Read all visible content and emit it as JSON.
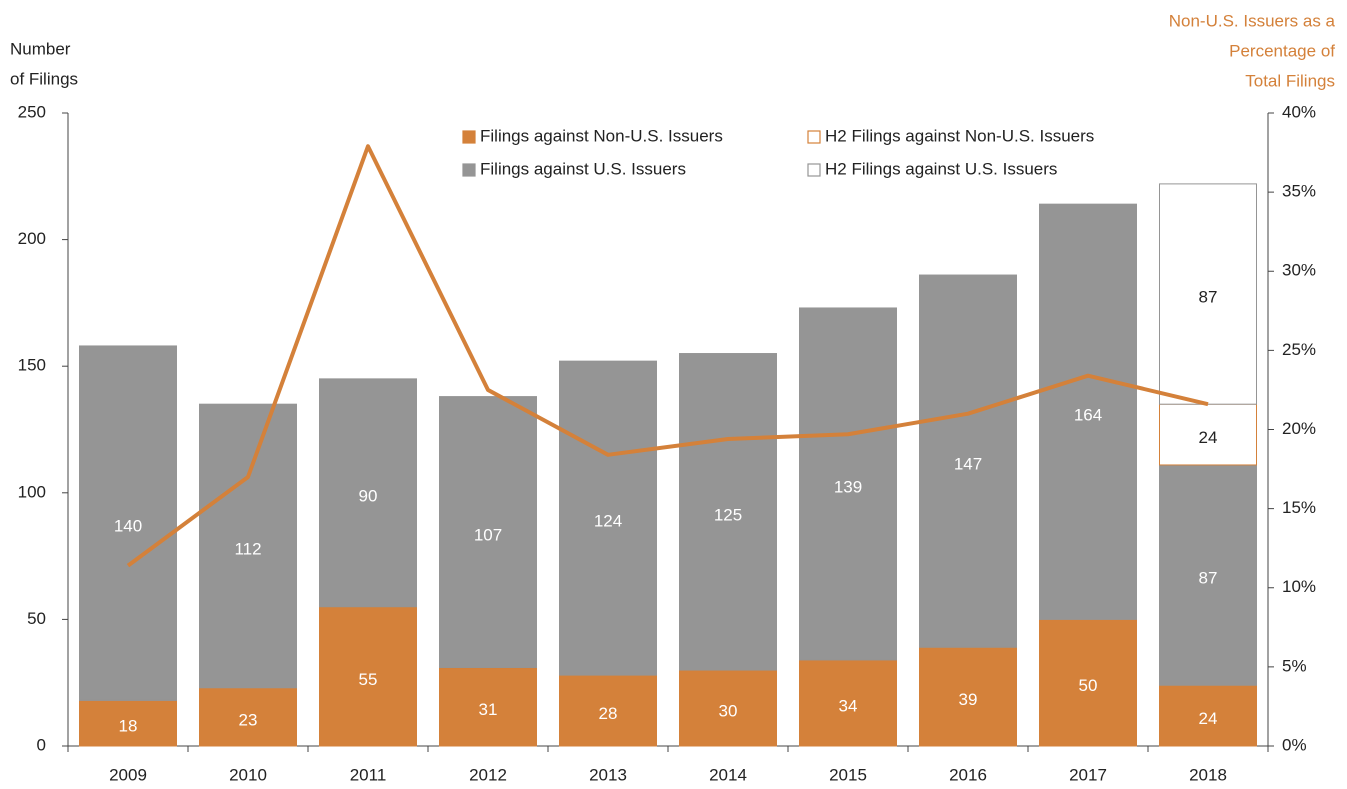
{
  "chart_data": {
    "type": "bar",
    "ylabel": [
      "Number",
      "of Filings"
    ],
    "y2label": [
      "Non-U.S. Issuers as a",
      "Percentage of",
      "Total Filings"
    ],
    "categories": [
      "2009",
      "2010",
      "2011",
      "2012",
      "2013",
      "2014",
      "2015",
      "2016",
      "2017",
      "2018"
    ],
    "series": [
      {
        "name": "Filings against Non-U.S. Issuers",
        "color": "#d4813a",
        "edgecolor": "#d4813a",
        "label_color": "#ffffff",
        "values": [
          18,
          23,
          55,
          31,
          28,
          30,
          34,
          39,
          50,
          24
        ]
      },
      {
        "name": "Filings against U.S. Issuers",
        "color": "#959595",
        "edgecolor": "#959595",
        "label_color": "#ffffff",
        "values": [
          140,
          112,
          90,
          107,
          124,
          125,
          139,
          147,
          164,
          87
        ]
      },
      {
        "name": "H2 Filings against Non-U.S. Issuers",
        "color": "#ffffff",
        "edgecolor": "#d4813a",
        "label_color": "#222222",
        "values": [
          null,
          null,
          null,
          null,
          null,
          null,
          null,
          null,
          null,
          24
        ]
      },
      {
        "name": "H2 Filings against U.S. Issuers",
        "color": "#ffffff",
        "edgecolor": "#959595",
        "label_color": "#222222",
        "values": [
          null,
          null,
          null,
          null,
          null,
          null,
          null,
          null,
          null,
          87
        ]
      },
      {
        "type": "line",
        "axis": "y2",
        "color": "#d4813a",
        "values": [
          11.4,
          17.0,
          37.9,
          22.5,
          18.4,
          19.4,
          19.7,
          21.0,
          23.4,
          21.6
        ]
      }
    ],
    "ylim": [
      0,
      250
    ],
    "yticks": [
      0,
      50,
      100,
      150,
      200,
      250
    ],
    "y2lim": [
      0,
      40
    ],
    "y2ticks": [
      {
        "value": 0,
        "label": "0%"
      },
      {
        "value": 5,
        "label": "5%"
      },
      {
        "value": 10,
        "label": "10%"
      },
      {
        "value": 15,
        "label": "15%"
      },
      {
        "value": 20,
        "label": "20%"
      },
      {
        "value": 25,
        "label": "25%"
      },
      {
        "value": 30,
        "label": "30%"
      },
      {
        "value": 35,
        "label": "35%"
      },
      {
        "value": 40,
        "label": "40%"
      }
    ],
    "y2label_color": "#d4813a",
    "grid": false
  }
}
